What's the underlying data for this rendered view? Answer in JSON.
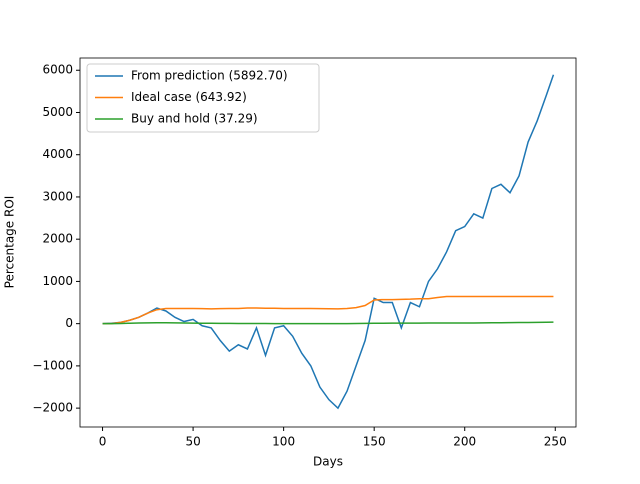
{
  "chart_data": {
    "type": "line",
    "title": null,
    "x_label": "Days",
    "y_label": "Percentage ROI",
    "x": [
      0,
      5,
      10,
      15,
      20,
      25,
      30,
      35,
      40,
      45,
      50,
      55,
      60,
      65,
      70,
      75,
      80,
      85,
      90,
      95,
      100,
      105,
      110,
      115,
      120,
      125,
      130,
      135,
      140,
      145,
      150,
      155,
      160,
      165,
      170,
      175,
      180,
      185,
      190,
      195,
      200,
      205,
      210,
      215,
      220,
      225,
      230,
      235,
      240,
      245,
      249
    ],
    "series": [
      {
        "name": "From prediction (5892.70)",
        "color": "#1f77b4",
        "values": [
          0,
          10,
          30,
          80,
          150,
          250,
          370,
          300,
          150,
          50,
          100,
          -50,
          -100,
          -400,
          -650,
          -500,
          -600,
          -100,
          -750,
          -100,
          -50,
          -300,
          -700,
          -1000,
          -1500,
          -1800,
          -2000,
          -1600,
          -1000,
          -400,
          600,
          500,
          500,
          -100,
          500,
          400,
          1000,
          1300,
          1700,
          2200,
          2300,
          2600,
          2500,
          3200,
          3300,
          3100,
          3500,
          4300,
          4800,
          5400,
          5892.7
        ]
      },
      {
        "name": "Ideal case (643.92)",
        "color": "#ff7f0e",
        "values": [
          0,
          0,
          30,
          80,
          150,
          250,
          330,
          360,
          360,
          360,
          360,
          355,
          350,
          355,
          360,
          360,
          370,
          370,
          365,
          365,
          360,
          360,
          360,
          358,
          355,
          352,
          350,
          360,
          380,
          430,
          560,
          570,
          570,
          575,
          580,
          590,
          590,
          620,
          644,
          644,
          644,
          644,
          644,
          644,
          644,
          644,
          644,
          644,
          644,
          644,
          643.92
        ]
      },
      {
        "name": "Buy and hold (37.29)",
        "color": "#2ca02c",
        "values": [
          0,
          2,
          5,
          10,
          15,
          18,
          20,
          20,
          18,
          15,
          12,
          10,
          10,
          8,
          6,
          5,
          5,
          4,
          3,
          2,
          2,
          1,
          1,
          0,
          0,
          0,
          0,
          2,
          4,
          6,
          10,
          10,
          12,
          12,
          12,
          13,
          14,
          15,
          15,
          15,
          15,
          16,
          18,
          20,
          22,
          24,
          26,
          28,
          30,
          34,
          37.29
        ]
      }
    ],
    "xlim": [
      -12.45,
      261.45
    ],
    "xticks": [
      0,
      50,
      100,
      150,
      200,
      250
    ],
    "ylim": [
      -2447,
      6290
    ],
    "yticks": [
      {
        "value": -2000,
        "label": "−2000"
      },
      {
        "value": -1000,
        "label": "−1000"
      },
      0,
      1000,
      2000,
      3000,
      4000,
      5000,
      6000
    ],
    "legend": "upper left",
    "grid": false
  }
}
